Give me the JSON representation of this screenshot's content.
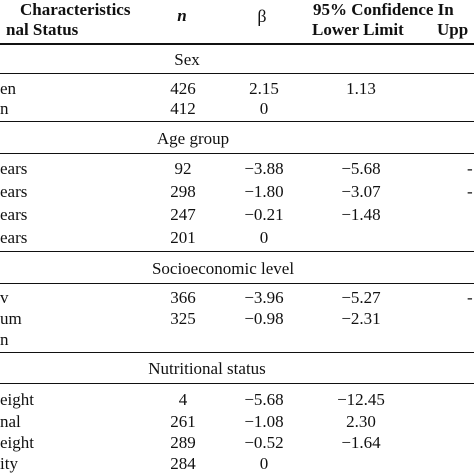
{
  "header": {
    "line1_characteristics": "Characteristics",
    "line2_status": "nal Status",
    "n_label": "n",
    "beta_label": "β",
    "ci_label": "95% Confidence In",
    "lower_label": "Lower Limit",
    "upper_label": "Upp"
  },
  "sections": [
    {
      "title": "Sex",
      "rows": [
        {
          "label": "en",
          "n": "426",
          "beta": "2.15",
          "lower": "1.13",
          "upper": ""
        },
        {
          "label": "n",
          "n": "412",
          "beta": "0",
          "lower": "",
          "upper": ""
        }
      ]
    },
    {
      "title": "Age group",
      "rows": [
        {
          "label": "ears",
          "n": "92",
          "beta": "−3.88",
          "lower": "−5.68",
          "upper": "-"
        },
        {
          "label": "ears",
          "n": "298",
          "beta": "−1.80",
          "lower": "−3.07",
          "upper": "-"
        },
        {
          "label": "ears",
          "n": "247",
          "beta": "−0.21",
          "lower": "−1.48",
          "upper": ""
        },
        {
          "label": "ears",
          "n": "201",
          "beta": "0",
          "lower": "",
          "upper": ""
        }
      ]
    },
    {
      "title": "Socioeconomic level",
      "rows": [
        {
          "label": "v",
          "n": "366",
          "beta": "−3.96",
          "lower": "−5.27",
          "upper": "-"
        },
        {
          "label": "um",
          "n": "325",
          "beta": "−0.98",
          "lower": "−2.31",
          "upper": ""
        },
        {
          "label": "n",
          "n": "",
          "beta": "",
          "lower": "",
          "upper": ""
        }
      ]
    },
    {
      "title": "Nutritional status",
      "rows": [
        {
          "label": "eight",
          "n": "4",
          "beta": "−5.68",
          "lower": "−12.45",
          "upper": ""
        },
        {
          "label": "nal",
          "n": "261",
          "beta": "−1.08",
          "lower": "2.30",
          "upper": ""
        },
        {
          "label": "eight",
          "n": "289",
          "beta": "−0.52",
          "lower": "−1.64",
          "upper": ""
        },
        {
          "label": "ity",
          "n": "284",
          "beta": "0",
          "lower": "",
          "upper": ""
        }
      ]
    }
  ]
}
